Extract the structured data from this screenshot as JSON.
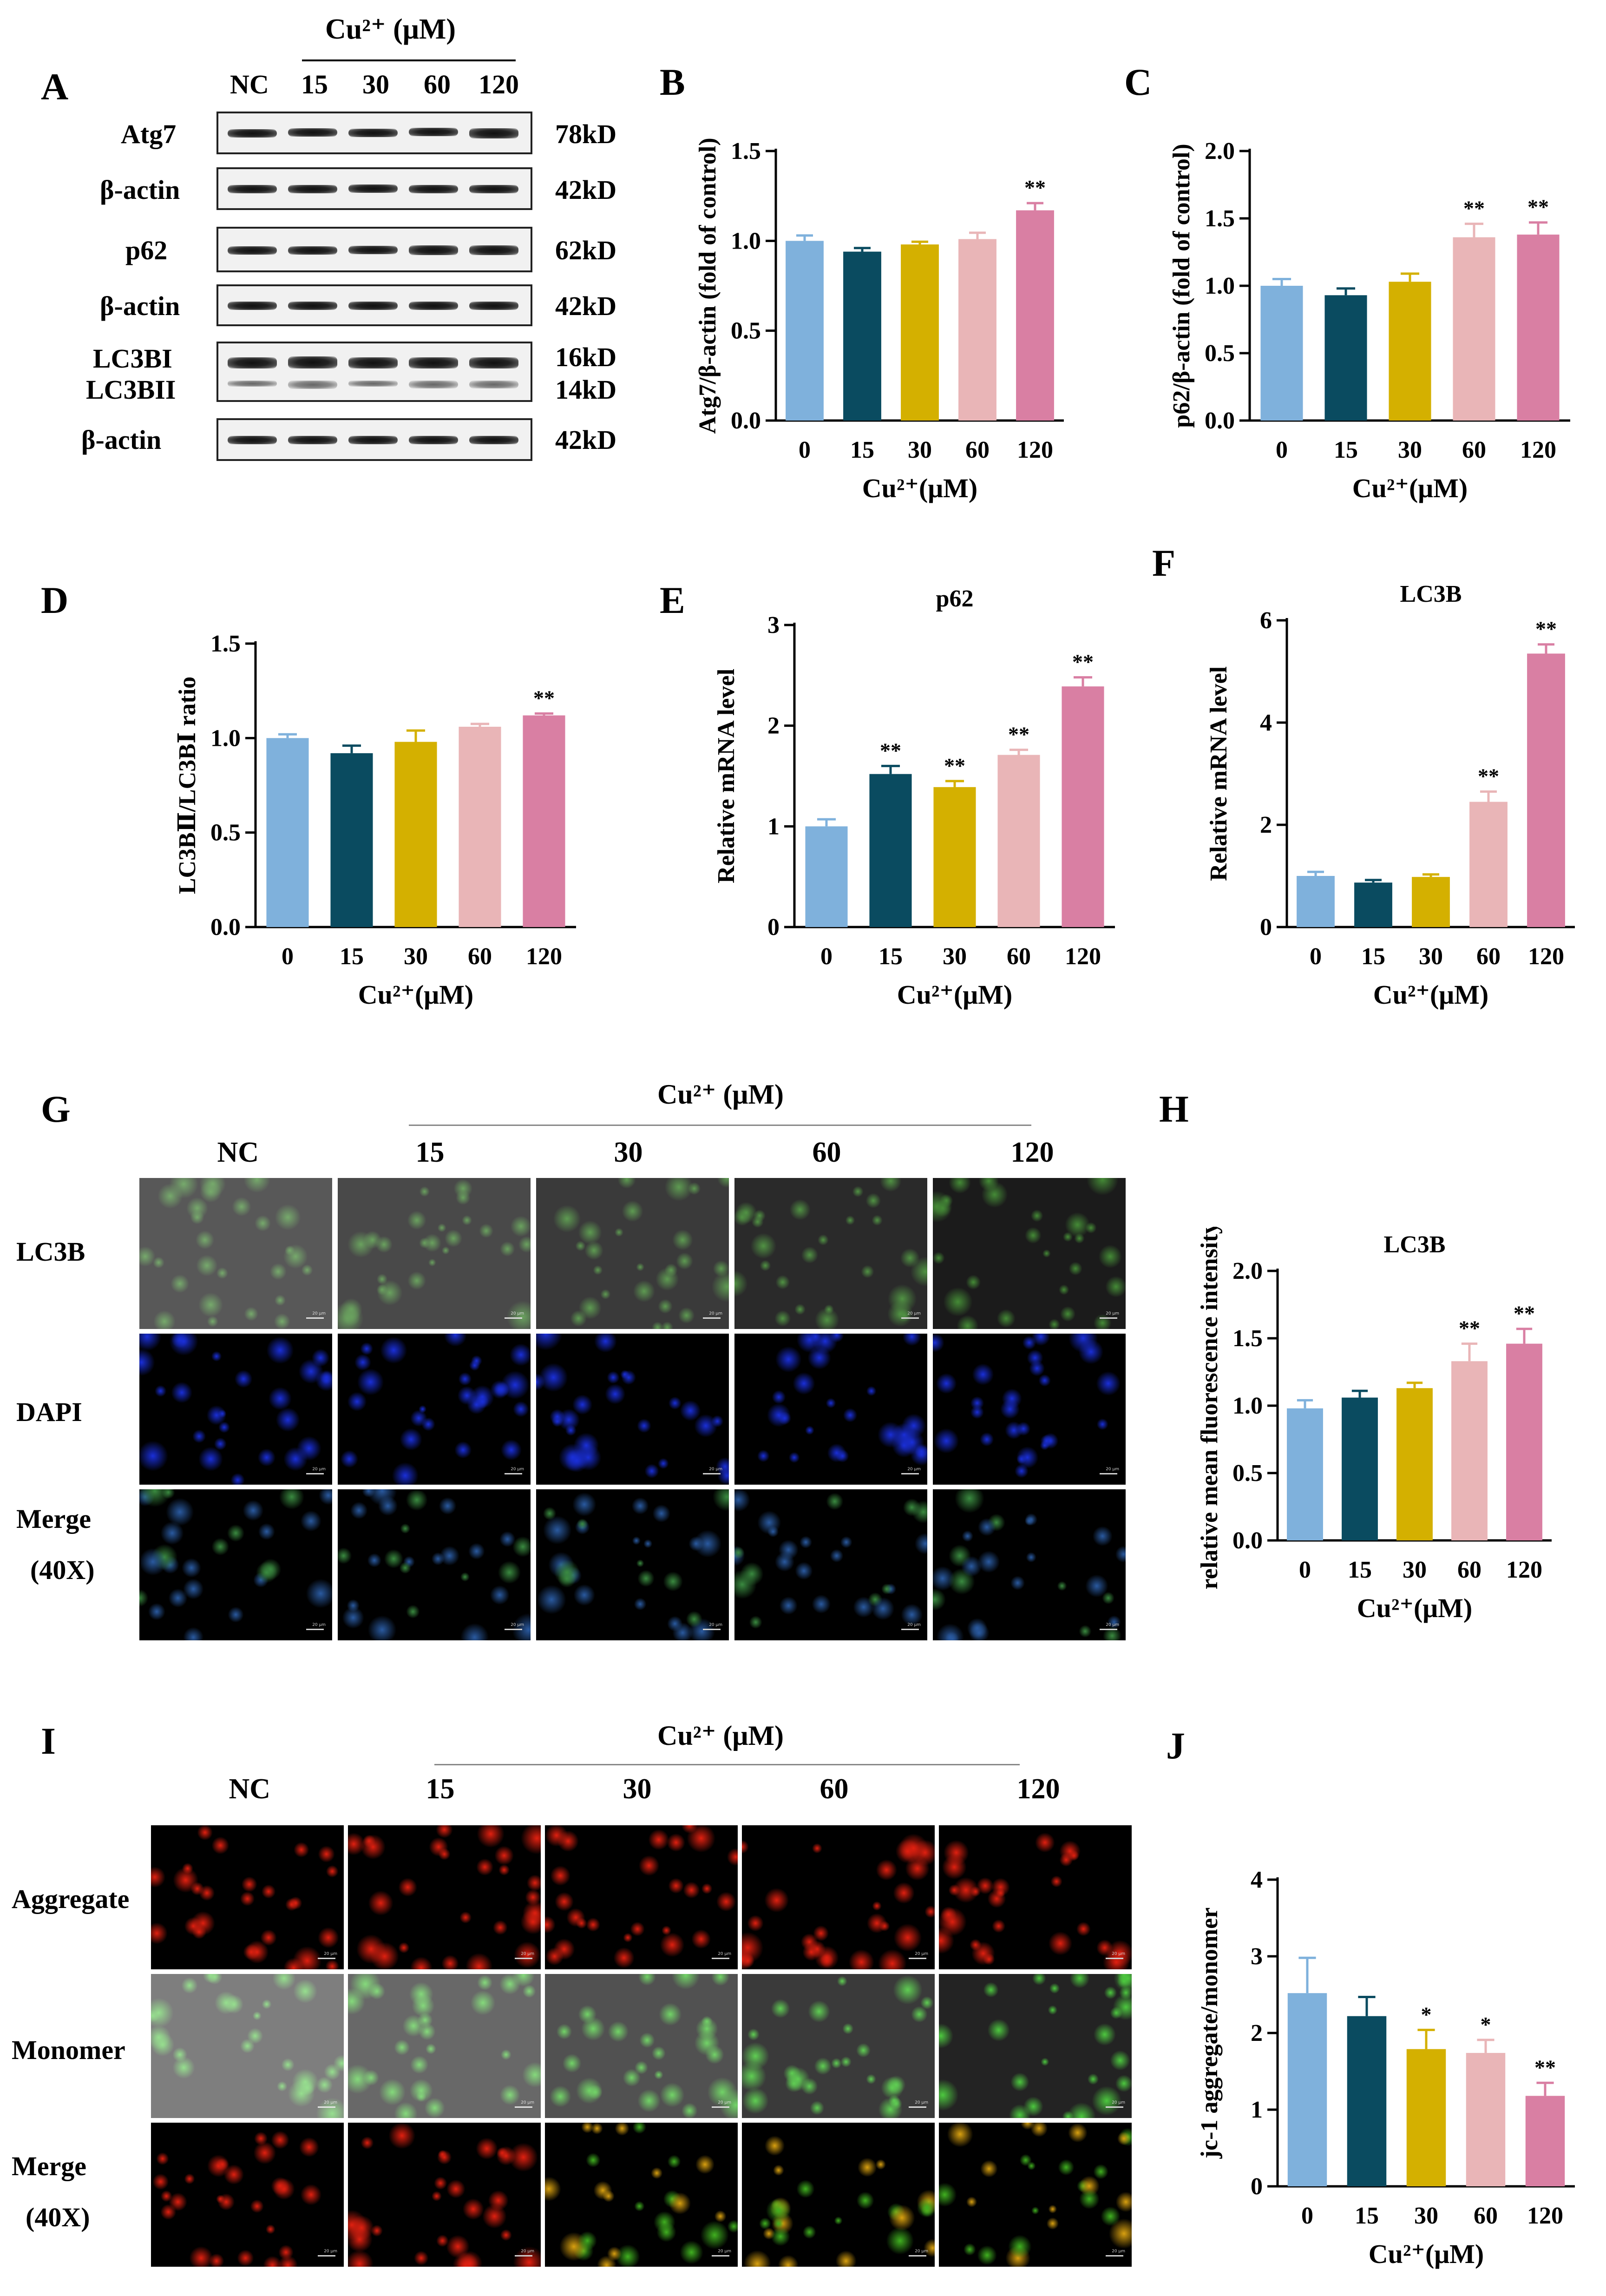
{
  "panels": {
    "A": "A",
    "B": "B",
    "C": "C",
    "D": "D",
    "E": "E",
    "F": "F",
    "G": "G",
    "H": "H",
    "I": "I",
    "J": "J"
  },
  "blot": {
    "group_label": "Cu²⁺ (μM)",
    "lanes": [
      "NC",
      "15",
      "30",
      "60",
      "120"
    ],
    "rows": [
      {
        "name": "Atg7",
        "size": "78kD"
      },
      {
        "name": "β-actin",
        "size": "42kD"
      },
      {
        "name": "p62",
        "size": "62kD"
      },
      {
        "name": "β-actin",
        "size": "42kD"
      },
      {
        "name": "LC3BI",
        "size": "16kD"
      },
      {
        "name": "LC3BII",
        "size": "14kD"
      },
      {
        "name": "β-actin",
        "size": "42kD"
      }
    ]
  },
  "micro_G": {
    "group_label": "Cu²⁺ (μM)",
    "cols": [
      "NC",
      "15",
      "30",
      "60",
      "120"
    ],
    "rows": [
      "LC3B",
      "DAPI",
      "Merge"
    ],
    "mag": "(40X)",
    "scale": "20 μm",
    "colors": {
      "LC3B": "#2e7d1e",
      "DAPI": "#1a2fd8",
      "Merge": "#2a6a8a"
    }
  },
  "micro_I": {
    "group_label": "Cu²⁺ (μM)",
    "cols": [
      "NC",
      "15",
      "30",
      "60",
      "120"
    ],
    "rows": [
      "Aggregate",
      "Monomer",
      "Merge"
    ],
    "mag": "(40X)",
    "scale": "20 μm",
    "colors": {
      "Aggregate": "#e02010",
      "Monomer": "#30c020",
      "Merge": "#d89a10"
    }
  },
  "bar_colors": [
    "#7fb1dc",
    "#0a4b60",
    "#d4b000",
    "#e9b5b7",
    "#d97fa3"
  ],
  "chart_data": [
    {
      "id": "B",
      "type": "bar",
      "title": "",
      "xlabel": "Cu²⁺(μM)",
      "ylabel": "Atg7/β-actin (fold of control)",
      "categories": [
        "0",
        "15",
        "30",
        "60",
        "120"
      ],
      "values": [
        1.0,
        0.94,
        0.98,
        1.01,
        1.17
      ],
      "errors": [
        0.03,
        0.02,
        0.015,
        0.035,
        0.04
      ],
      "sig": [
        "",
        "",
        "",
        "",
        "**"
      ],
      "ylim": [
        0,
        1.5
      ],
      "yticks": [
        "0.0",
        "0.5",
        "1.0",
        "1.5"
      ]
    },
    {
      "id": "C",
      "type": "bar",
      "title": "",
      "xlabel": "Cu²⁺(μM)",
      "ylabel": "p62/β-actin (fold of control)",
      "categories": [
        "0",
        "15",
        "30",
        "60",
        "120"
      ],
      "values": [
        1.0,
        0.93,
        1.03,
        1.36,
        1.38
      ],
      "errors": [
        0.05,
        0.05,
        0.06,
        0.1,
        0.09
      ],
      "sig": [
        "",
        "",
        "",
        "**",
        "**"
      ],
      "ylim": [
        0,
        2.0
      ],
      "yticks": [
        "0.0",
        "0.5",
        "1.0",
        "1.5",
        "2.0"
      ]
    },
    {
      "id": "D",
      "type": "bar",
      "title": "",
      "xlabel": "Cu²⁺(μM)",
      "ylabel": "LC3BⅡ/LC3BⅠ ratio",
      "categories": [
        "0",
        "15",
        "30",
        "60",
        "120"
      ],
      "values": [
        1.0,
        0.92,
        0.98,
        1.06,
        1.12
      ],
      "errors": [
        0.02,
        0.04,
        0.06,
        0.015,
        0.01
      ],
      "sig": [
        "",
        "",
        "",
        "",
        "**"
      ],
      "ylim": [
        0,
        1.5
      ],
      "yticks": [
        "0.0",
        "0.5",
        "1.0",
        "1.5"
      ]
    },
    {
      "id": "E",
      "type": "bar",
      "title": "p62",
      "xlabel": "Cu²⁺(μM)",
      "ylabel": "Relative mRNA level",
      "categories": [
        "0",
        "15",
        "30",
        "60",
        "120"
      ],
      "values": [
        1.0,
        1.52,
        1.39,
        1.71,
        2.39
      ],
      "errors": [
        0.07,
        0.08,
        0.06,
        0.05,
        0.09
      ],
      "sig": [
        "",
        "**",
        "**",
        "**",
        "**"
      ],
      "ylim": [
        0,
        3
      ],
      "yticks": [
        "0",
        "1",
        "2",
        "3"
      ]
    },
    {
      "id": "F",
      "type": "bar",
      "title": "LC3B",
      "xlabel": "Cu²⁺(μM)",
      "ylabel": "Relative mRNA level",
      "categories": [
        "0",
        "15",
        "30",
        "60",
        "120"
      ],
      "values": [
        1.0,
        0.87,
        0.98,
        2.45,
        5.35
      ],
      "errors": [
        0.08,
        0.05,
        0.05,
        0.2,
        0.18
      ],
      "sig": [
        "",
        "",
        "",
        "**",
        "**"
      ],
      "ylim": [
        0,
        6
      ],
      "yticks": [
        "0",
        "2",
        "4",
        "6"
      ]
    },
    {
      "id": "H",
      "type": "bar",
      "title": "LC3B",
      "xlabel": "Cu²⁺(μM)",
      "ylabel": "relative mean fluorescence intensity",
      "categories": [
        "0",
        "15",
        "30",
        "60",
        "120"
      ],
      "values": [
        0.98,
        1.06,
        1.13,
        1.33,
        1.46
      ],
      "errors": [
        0.06,
        0.05,
        0.04,
        0.13,
        0.11
      ],
      "sig": [
        "",
        "",
        "",
        "**",
        "**"
      ],
      "ylim": [
        0,
        2.0
      ],
      "yticks": [
        "0.0",
        "0.5",
        "1.0",
        "1.5",
        "2.0"
      ]
    },
    {
      "id": "J",
      "type": "bar",
      "title": "",
      "xlabel": "Cu²⁺(μM)",
      "ylabel": "jc-1 aggregate/monomer",
      "categories": [
        "0",
        "15",
        "30",
        "60",
        "120"
      ],
      "values": [
        2.52,
        2.22,
        1.79,
        1.74,
        1.18
      ],
      "errors": [
        0.46,
        0.25,
        0.25,
        0.17,
        0.17
      ],
      "sig": [
        "",
        "",
        "*",
        "*",
        "**"
      ],
      "ylim": [
        0,
        4
      ],
      "yticks": [
        "0",
        "1",
        "2",
        "3",
        "4"
      ]
    }
  ]
}
